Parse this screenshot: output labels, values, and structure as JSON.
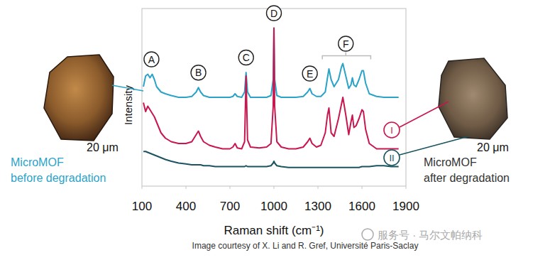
{
  "chart_data": {
    "type": "line",
    "x_label": "Raman shift (cm⁻¹)",
    "y_label": "Intensity",
    "xlim": [
      100,
      1900
    ],
    "xticks": [
      100,
      400,
      700,
      1000,
      1300,
      1600,
      1900
    ],
    "ylim": [
      0,
      100
    ],
    "tick_labels": "x",
    "grid": false,
    "x": [
      110,
      125,
      140,
      155,
      170,
      185,
      200,
      230,
      260,
      300,
      350,
      400,
      440,
      470,
      485,
      500,
      520,
      560,
      600,
      650,
      700,
      720,
      735,
      750,
      780,
      800,
      810,
      820,
      840,
      900,
      950,
      980,
      995,
      1000,
      1005,
      1020,
      1050,
      1100,
      1150,
      1200,
      1230,
      1245,
      1260,
      1290,
      1320,
      1350,
      1365,
      1375,
      1390,
      1410,
      1440,
      1460,
      1470,
      1490,
      1510,
      1525,
      1535,
      1545,
      1560,
      1580,
      1600,
      1610,
      1625,
      1650,
      1700,
      1750,
      1800,
      1850
    ],
    "series": [
      {
        "color": "#2ba3c9",
        "values": [
          56,
          62,
          63,
          61,
          63,
          60,
          56,
          53,
          52,
          51,
          50,
          50,
          50.5,
          53,
          55.5,
          53,
          51,
          50,
          50,
          50,
          50,
          50.5,
          52,
          50.5,
          50,
          53,
          64,
          53,
          50,
          50,
          50,
          51,
          60,
          89,
          60,
          51,
          50,
          50,
          50,
          50.5,
          53,
          55,
          52,
          50.5,
          50.5,
          53,
          61,
          66,
          60,
          56,
          60,
          67,
          69,
          62,
          55,
          57,
          61,
          57,
          56,
          60,
          65,
          65,
          58,
          52,
          50.5,
          50,
          50,
          50
        ]
      },
      {
        "name": "I",
        "color": "#c8174f",
        "values": [
          47,
          42,
          45,
          43,
          41,
          39,
          36,
          30,
          27,
          25,
          24,
          24,
          25,
          29,
          31,
          28,
          25,
          23,
          22,
          21,
          21,
          22,
          24,
          21.5,
          21,
          25,
          62,
          26,
          22,
          21.5,
          22,
          24,
          45,
          89,
          45,
          25,
          22,
          21,
          21,
          22,
          25,
          27,
          24,
          22,
          23,
          30,
          40,
          44,
          30,
          28,
          38,
          46,
          50,
          40,
          29,
          36,
          40,
          33,
          34,
          38,
          43,
          42,
          32,
          24,
          21,
          21,
          21,
          21
        ]
      },
      {
        "name": "II",
        "color": "#1a5460",
        "values": [
          19.5,
          19.5,
          19,
          18.5,
          18,
          17.5,
          17,
          16,
          15,
          14,
          13,
          12.5,
          12,
          12,
          12,
          12,
          11.5,
          11.5,
          11,
          11,
          11,
          11,
          11,
          11,
          11,
          11,
          11.5,
          11,
          11,
          11,
          11,
          11.5,
          13,
          14,
          13,
          11.5,
          11,
          10.5,
          10.5,
          10.5,
          10.5,
          10.5,
          10.5,
          10.5,
          10.5,
          10.5,
          10.5,
          10.5,
          10.5,
          10.5,
          10.5,
          10.5,
          10.5,
          10.5,
          10.5,
          10.5,
          10.5,
          10.5,
          10.5,
          10.5,
          11,
          11,
          11,
          11,
          11.5,
          11.5,
          11,
          11
        ]
      }
    ],
    "peak_labels": [
      {
        "label": "A",
        "x": 165
      },
      {
        "label": "B",
        "x": 485
      },
      {
        "label": "C",
        "x": 810
      },
      {
        "label": "D",
        "x": 1000
      },
      {
        "label": "E",
        "x": 1245
      },
      {
        "label": "F",
        "x": 1490,
        "range": [
          1330,
          1660
        ]
      }
    ],
    "images": [
      {
        "caption": [
          "MicroMOF",
          "before degradation"
        ],
        "scale_bar": "20 μm"
      },
      {
        "caption": [
          "MicroMOF",
          "after degradation"
        ],
        "scale_bar": "20 μm"
      }
    ],
    "credit": "Image courtesy of X. Li and R. Gref, Université Paris-Saclay",
    "watermark": "服务号 · 马尔文帕纳科"
  }
}
